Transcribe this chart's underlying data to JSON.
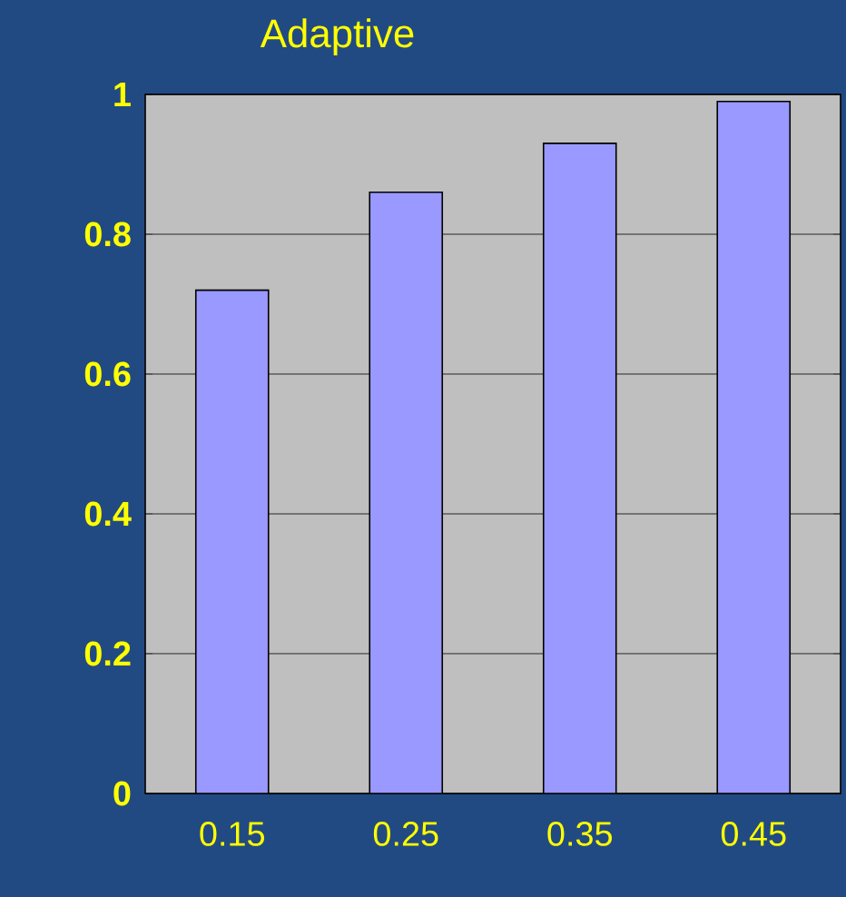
{
  "chart_data": {
    "type": "bar",
    "title": "Adaptive",
    "categories": [
      "0.15",
      "0.25",
      "0.35",
      "0.45"
    ],
    "values": [
      0.72,
      0.86,
      0.93,
      0.99
    ],
    "color": "#9999ff",
    "ylim": [
      0,
      1
    ],
    "yticks": [
      0,
      0.2,
      0.4,
      0.6,
      0.8,
      1
    ],
    "grid": "y"
  }
}
